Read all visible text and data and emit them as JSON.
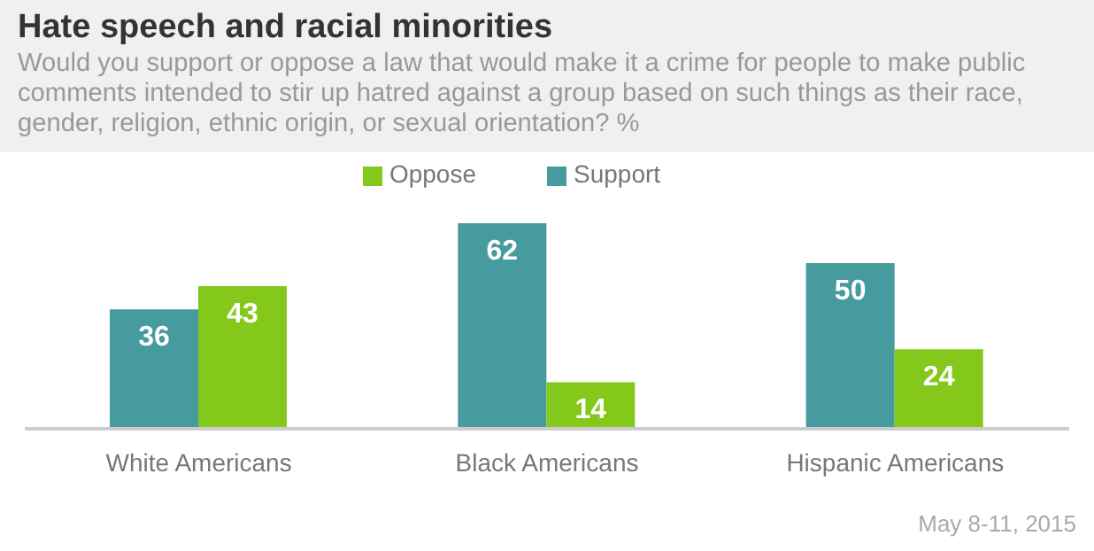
{
  "chart_data": {
    "type": "bar",
    "title": "Hate speech and racial minorities",
    "subtitle": "Would you support or oppose a law that would make it a crime for people to make public comments intended to stir up hatred against a group based on such things as their race, gender, religion, ethnic origin, or sexual orientation? %",
    "categories": [
      "White Americans",
      "Black Americans",
      "Hispanic Americans"
    ],
    "series": [
      {
        "name": "Support",
        "color": "#469b9e",
        "values": [
          36,
          62,
          50
        ]
      },
      {
        "name": "Oppose",
        "color": "#84c81c",
        "values": [
          43,
          14,
          24
        ]
      }
    ],
    "data_labels": true,
    "legend": "top",
    "annotations": [
      "May 8-11, 2015"
    ]
  }
}
